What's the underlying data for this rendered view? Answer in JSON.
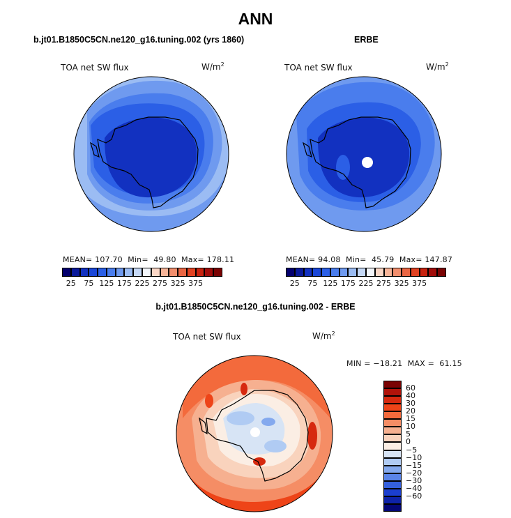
{
  "figure_title": "ANN",
  "panels": [
    {
      "title": "b.jt01.B1850C5CN.ne120_g16.tuning.002 (yrs 1860)",
      "field": "TOA net SW flux",
      "unit_base": "W/m",
      "unit_exp": "2",
      "mean_label": "MEAN=",
      "mean": "107.70",
      "min_label": "Min=",
      "min": "49.80",
      "max_label": "Max=",
      "max": "178.11"
    },
    {
      "title": "ERBE",
      "field": "TOA net SW flux",
      "unit_base": "W/m",
      "unit_exp": "2",
      "mean_label": "MEAN=",
      "mean": "94.08",
      "min_label": "Min=",
      "min": "45.79",
      "max_label": "Max=",
      "max": "147.87"
    },
    {
      "title": "b.jt01.B1850C5CN.ne120_g16.tuning.002 - ERBE",
      "field": "TOA net SW flux",
      "unit_base": "W/m",
      "unit_exp": "2",
      "min_label": "MIN =",
      "min": "−18.21",
      "max_label": "MAX =",
      "max": "61.15"
    }
  ],
  "colorbar_abs": {
    "tick_labels": [
      "25",
      "75",
      "125",
      "175",
      "225",
      "275",
      "325",
      "375"
    ],
    "colors": [
      "#04006e",
      "#0a1a9a",
      "#1231c0",
      "#1a47d8",
      "#2b5fe6",
      "#4a7ded",
      "#6f9aef",
      "#9bbcf3",
      "#c5d8f6",
      "#f3f6fb",
      "#fbd7c6",
      "#f7b498",
      "#f28e6d",
      "#ea6644",
      "#e14222",
      "#c82310",
      "#a10c0a",
      "#7a0303"
    ]
  },
  "colorbar_diff": {
    "tick_labels": [
      "60",
      "40",
      "30",
      "20",
      "15",
      "10",
      "5",
      "0",
      "−5",
      "−10",
      "−15",
      "−20",
      "−30",
      "−40",
      "−60"
    ],
    "colors": [
      "#7a0303",
      "#b0130a",
      "#d6290f",
      "#ee4418",
      "#f36a3c",
      "#f58d65",
      "#f6b090",
      "#f9d3bd",
      "#fbeee4",
      "#d7e4f5",
      "#b0cbf3",
      "#84a9ee",
      "#5a84e8",
      "#3460de",
      "#1b3fcf",
      "#0e23a8",
      "#040776"
    ]
  },
  "chart_data": [
    {
      "type": "heatmap",
      "projection": "south polar stereographic",
      "title": "b.jt01.B1850C5CN.ne120_g16.tuning.002 (yrs 1860)",
      "variable": "TOA net SW flux",
      "units": "W/m2",
      "mean": 107.7,
      "min": 49.8,
      "max": 178.11,
      "contour_levels": [
        25,
        75,
        125,
        175,
        225,
        275,
        325,
        375
      ]
    },
    {
      "type": "heatmap",
      "projection": "south polar stereographic",
      "title": "ERBE",
      "variable": "TOA net SW flux",
      "units": "W/m2",
      "mean": 94.08,
      "min": 45.79,
      "max": 147.87,
      "contour_levels": [
        25,
        75,
        125,
        175,
        225,
        275,
        325,
        375
      ]
    },
    {
      "type": "heatmap",
      "projection": "south polar stereographic",
      "title": "b.jt01.B1850C5CN.ne120_g16.tuning.002 - ERBE",
      "variable": "TOA net SW flux",
      "units": "W/m2",
      "min": -18.21,
      "max": 61.15,
      "contour_levels": [
        -60,
        -40,
        -30,
        -20,
        -15,
        -10,
        -5,
        0,
        5,
        10,
        15,
        20,
        30,
        40,
        60
      ]
    }
  ]
}
